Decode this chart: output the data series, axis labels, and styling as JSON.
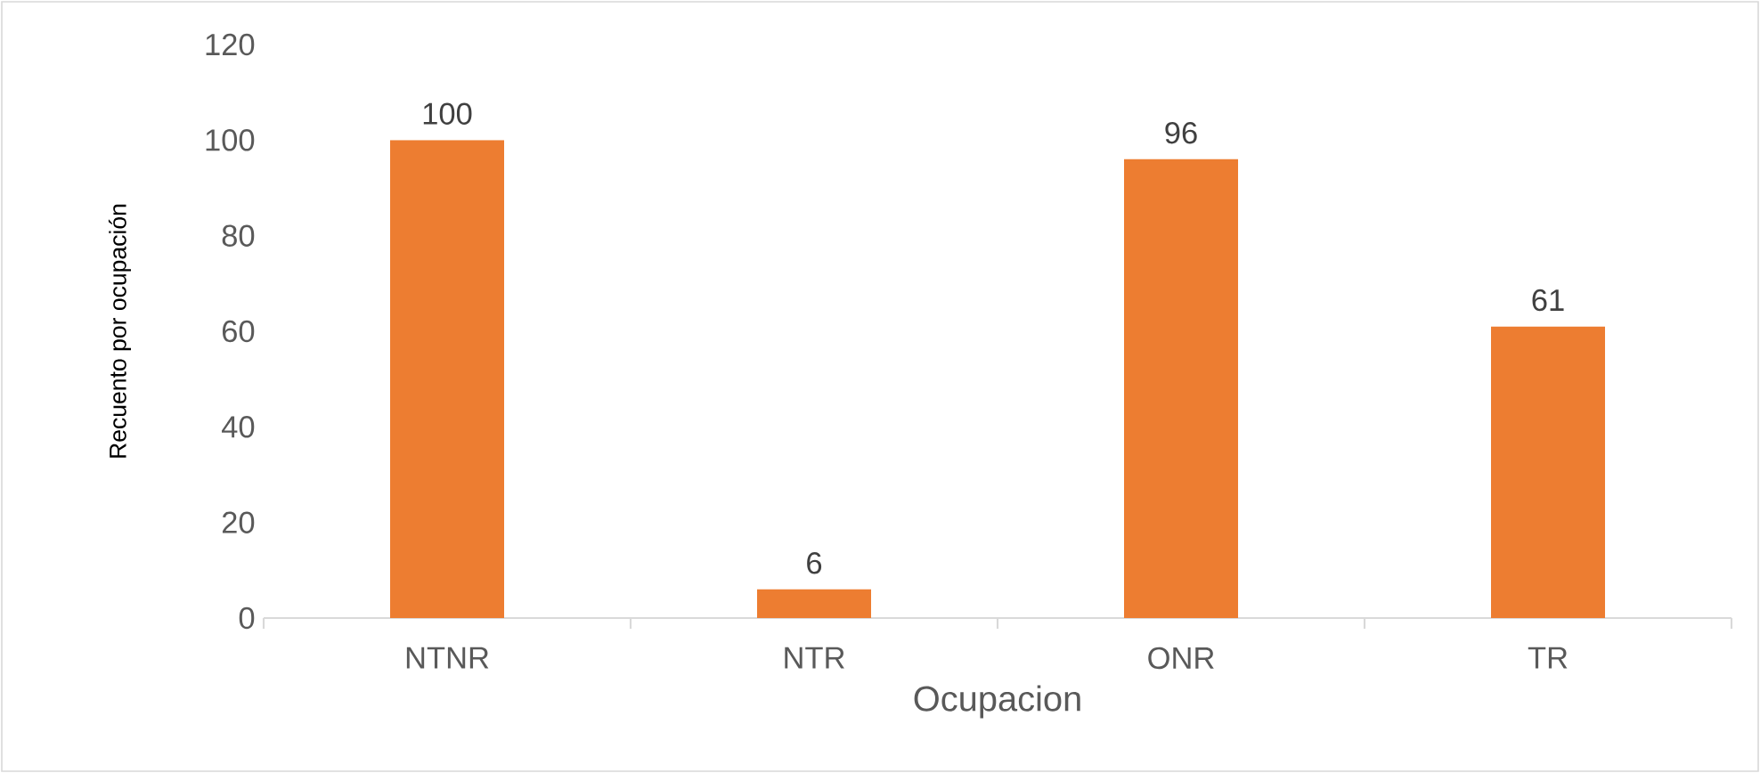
{
  "chart_data": {
    "type": "bar",
    "xlabel": "Ocupacion",
    "ylabel": "Recuento por ocupación",
    "categories": [
      "NTNR",
      "NTR",
      "ONR",
      "TR"
    ],
    "values": [
      100,
      6,
      96,
      61
    ],
    "color": "#ed7d31",
    "ylim": [
      0,
      120
    ],
    "yticks": [
      0,
      20,
      40,
      60,
      80,
      100,
      120
    ],
    "data_labels": true
  }
}
